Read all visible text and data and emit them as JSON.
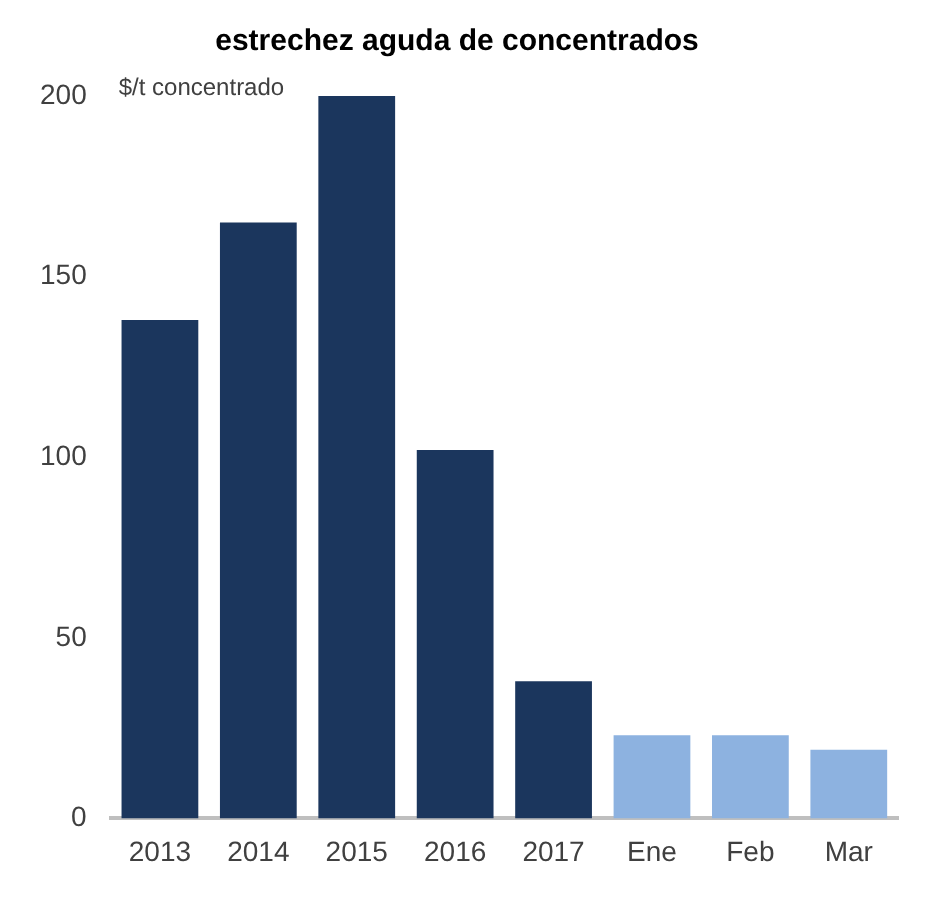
{
  "chart_data": {
    "type": "bar",
    "title": "estrechez aguda de concentrados",
    "ylabel": "$/t concentrado",
    "categories": [
      "2013",
      "2014",
      "2015",
      "2016",
      "2017",
      "Ene",
      "Feb",
      "Mar"
    ],
    "values": [
      138,
      165,
      200,
      102,
      38,
      23,
      23,
      19
    ],
    "colors": [
      "#1b365d",
      "#1b365d",
      "#1b365d",
      "#1b365d",
      "#1b365d",
      "#8db2e0",
      "#8db2e0",
      "#8db2e0"
    ],
    "ylim": [
      0,
      200
    ],
    "yticks": [
      0,
      50,
      100,
      150,
      200
    ],
    "grid": false,
    "legend": false
  }
}
